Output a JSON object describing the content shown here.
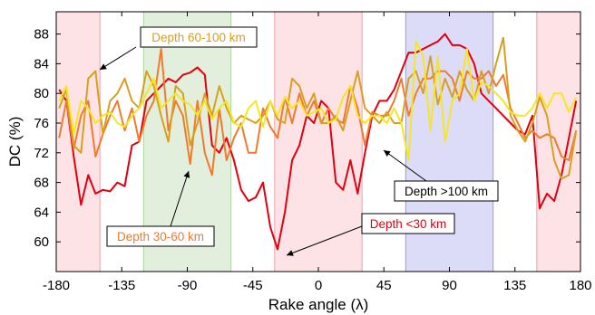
{
  "chart_data": {
    "type": "line",
    "xlabel": "Rake angle (λ)",
    "ylabel": "DC (%)",
    "xlim": [
      -180,
      180
    ],
    "ylim": [
      56,
      91
    ],
    "xticks": [
      -180,
      -135,
      -90,
      -45,
      0,
      45,
      90,
      135,
      180
    ],
    "yticks": [
      60,
      64,
      68,
      72,
      76,
      80,
      84,
      88
    ],
    "grid": false,
    "shaded_regions": [
      {
        "x0": -180,
        "x1": -150,
        "color": "#fde3e6",
        "edge": "#f0a0a8"
      },
      {
        "x0": -120,
        "x1": -60,
        "color": "#e3efdd",
        "edge": "#a9d6a0"
      },
      {
        "x0": -30,
        "x1": 30,
        "color": "#fde3e6",
        "edge": "#f0a0a8"
      },
      {
        "x0": 60,
        "x1": 120,
        "color": "#dcdcf8",
        "edge": "#9a9ae0"
      },
      {
        "x0": 150,
        "x1": 180,
        "color": "#fde3e6",
        "edge": "#f0a0a8"
      }
    ],
    "series": [
      {
        "color": "#e00010",
        "x": [
          -178,
          -173,
          -168,
          -163,
          -158,
          -153,
          -148,
          -143,
          -138,
          -133,
          -128,
          -123,
          -118,
          -113,
          -108,
          -103,
          -98,
          -93,
          -88,
          -83,
          -78,
          -73,
          -68,
          -63,
          -58,
          -53,
          -48,
          -43,
          -38,
          -33,
          -28,
          -23,
          -18,
          -13,
          -8,
          -3,
          2,
          7,
          12,
          17,
          22,
          27,
          32,
          37,
          42,
          47,
          52,
          57,
          62,
          67,
          72,
          77,
          82,
          87,
          92,
          97,
          102,
          107,
          112,
          117,
          122,
          127,
          132,
          137,
          142,
          147,
          152,
          157,
          162,
          167,
          172,
          177
        ],
        "y": [
          80.5,
          79,
          71.5,
          65,
          69,
          66.5,
          67,
          66.8,
          68,
          67.5,
          73,
          73.5,
          79,
          80,
          81,
          82,
          81.5,
          82.5,
          82.8,
          83.5,
          82.5,
          73,
          72,
          74,
          71,
          67,
          65.5,
          66,
          68,
          62,
          59,
          64,
          71,
          73,
          77,
          76,
          79,
          78,
          68,
          67,
          71,
          66.5,
          72,
          77,
          79,
          79,
          80.5,
          83,
          85.5,
          85.5,
          86,
          86.5,
          87,
          88,
          86.5,
          86.5,
          86,
          84,
          80,
          79,
          78,
          77,
          76,
          75,
          74.5,
          77,
          64.5,
          66.5,
          65.5,
          69,
          74,
          79
        ]
      },
      {
        "color": "#f07a30",
        "x": [
          -178,
          -173,
          -168,
          -163,
          -158,
          -153,
          -148,
          -143,
          -138,
          -133,
          -128,
          -123,
          -118,
          -113,
          -108,
          -103,
          -98,
          -93,
          -88,
          -83,
          -78,
          -73,
          -68,
          -63,
          -58,
          -53,
          -48,
          -43,
          -38,
          -33,
          -28,
          -23,
          -18,
          -13,
          -8,
          -3,
          2,
          7,
          12,
          17,
          22,
          27,
          32,
          37,
          42,
          47,
          52,
          57,
          62,
          67,
          72,
          77,
          82,
          87,
          92,
          97,
          102,
          107,
          112,
          117,
          122,
          127,
          132,
          137,
          142,
          147,
          152,
          157,
          162,
          167,
          172,
          177
        ],
        "y": [
          74,
          79,
          72.5,
          77,
          79,
          71.5,
          74.5,
          77,
          79,
          75,
          78,
          73.5,
          77,
          79,
          86,
          75,
          79,
          77,
          70.5,
          79,
          72,
          69,
          78,
          71,
          74,
          76,
          72,
          72,
          78,
          75.5,
          74,
          79.5,
          76,
          80,
          77,
          79,
          76,
          78,
          76.5,
          76,
          81,
          78,
          73,
          77.5,
          77,
          77,
          79,
          82,
          77,
          80,
          82,
          82,
          83,
          83,
          82,
          79,
          83,
          82,
          82,
          83,
          81,
          82.5,
          78,
          76,
          74,
          75,
          74,
          74.5,
          74,
          71.5,
          71,
          75
        ]
      },
      {
        "color": "#d8a020",
        "x": [
          -178,
          -173,
          -168,
          -163,
          -158,
          -153,
          -148,
          -143,
          -138,
          -133,
          -128,
          -123,
          -118,
          -113,
          -108,
          -103,
          -98,
          -93,
          -88,
          -83,
          -78,
          -73,
          -68,
          -63,
          -58,
          -53,
          -48,
          -43,
          -38,
          -33,
          -28,
          -23,
          -18,
          -13,
          -8,
          -3,
          2,
          7,
          12,
          17,
          22,
          27,
          32,
          37,
          42,
          47,
          52,
          57,
          62,
          67,
          72,
          77,
          82,
          87,
          92,
          97,
          102,
          107,
          112,
          117,
          122,
          127,
          132,
          137,
          142,
          147,
          152,
          157,
          162,
          167,
          172,
          177
        ],
        "y": [
          78,
          80.5,
          73,
          72,
          82,
          83,
          74.5,
          79,
          80,
          82,
          79,
          78,
          83,
          81,
          77,
          73.5,
          81,
          80,
          73,
          76,
          80,
          77,
          81,
          78,
          76,
          77,
          76.5,
          76,
          77,
          79,
          76.5,
          76,
          82,
          81,
          78,
          80,
          76,
          76,
          77,
          75,
          79,
          83,
          78,
          77,
          76,
          77.5,
          76,
          76,
          82,
          83,
          80,
          85,
          78.5,
          82,
          79.5,
          83,
          80.5,
          79,
          83,
          80,
          84,
          87.5,
          77,
          75,
          73.5,
          76,
          79.5,
          77,
          71,
          68.5,
          69,
          75
        ]
      },
      {
        "color": "#f5e626",
        "x": [
          -178,
          -173,
          -168,
          -163,
          -158,
          -153,
          -148,
          -143,
          -138,
          -133,
          -128,
          -123,
          -118,
          -113,
          -108,
          -103,
          -98,
          -93,
          -88,
          -83,
          -78,
          -73,
          -68,
          -63,
          -58,
          -53,
          -48,
          -43,
          -38,
          -33,
          -28,
          -23,
          -18,
          -13,
          -8,
          -3,
          2,
          7,
          12,
          17,
          22,
          27,
          32,
          37,
          42,
          47,
          52,
          57,
          62,
          67,
          72,
          77,
          82,
          87,
          92,
          97,
          102,
          107,
          112,
          117,
          122,
          127,
          132,
          137,
          142,
          147,
          152,
          157,
          162,
          167,
          172,
          177
        ],
        "y": [
          79,
          81,
          74.5,
          79,
          78,
          76,
          77,
          77.5,
          76,
          75.5,
          77,
          78,
          80,
          82,
          78,
          79,
          80,
          79,
          78.5,
          77,
          79,
          76.5,
          78,
          79,
          76,
          75.5,
          78,
          79,
          75.5,
          79,
          77,
          79.5,
          78,
          79,
          77,
          77.5,
          78,
          76,
          76.5,
          79.5,
          81,
          77,
          76,
          77,
          77,
          76,
          78,
          76,
          71,
          87,
          85,
          75,
          85,
          73.5,
          79,
          80,
          86,
          79,
          81.5,
          81,
          80,
          79,
          77.5,
          77,
          77,
          78,
          80,
          78,
          80,
          80,
          77.5,
          79.5
        ]
      }
    ],
    "annotations": [
      {
        "text": "Depth 60-100 km",
        "color": "#d8a020"
      },
      {
        "text": "Depth 30-60 km",
        "color": "#f07a30"
      },
      {
        "text": "Depth <30 km",
        "color": "#e00010"
      },
      {
        "text": "Depth >100 km",
        "color": "#000000"
      }
    ]
  }
}
